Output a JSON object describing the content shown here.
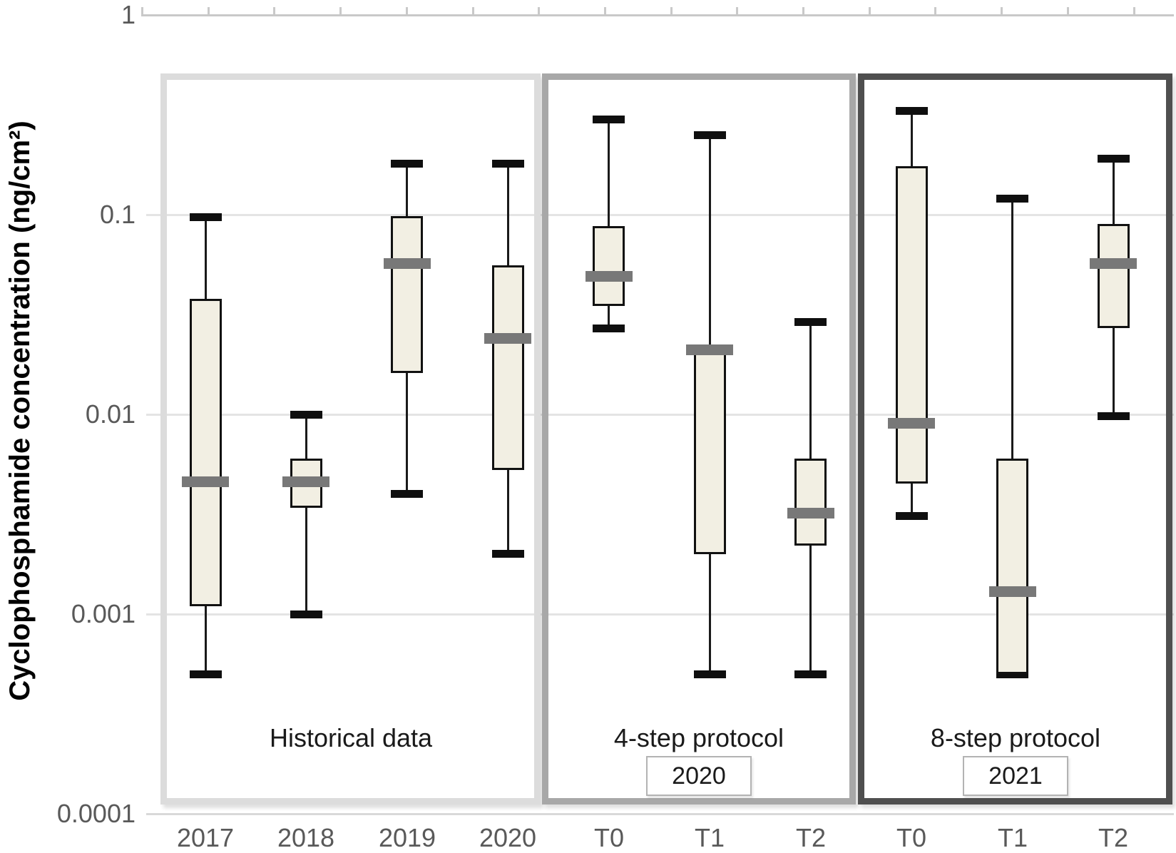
{
  "chart_data": {
    "type": "boxplot",
    "title": "",
    "ylabel": "Cyclophosphamide concentration (ng/cm²)",
    "xlabel": "",
    "y_scale": "log",
    "ylim": [
      0.0001,
      1
    ],
    "y_ticks": [
      {
        "label": "1",
        "value": 1
      },
      {
        "label": "0.1",
        "value": 0.1
      },
      {
        "label": "0.01",
        "value": 0.01
      },
      {
        "label": "0.001",
        "value": 0.001
      },
      {
        "label": "0.0001",
        "value": 0.0001
      }
    ],
    "grid": "horizontal",
    "legend": "none",
    "categories": [
      "2017",
      "2018",
      "2019",
      "2020",
      "T0",
      "T1",
      "T2",
      "T0",
      "T1",
      "T2"
    ],
    "panels": [
      {
        "label": "Historical data",
        "year_badge": null,
        "category_span": [
          0,
          3
        ],
        "border_color": "#dcdcdc"
      },
      {
        "label": "4-step protocol",
        "year_badge": "2020",
        "category_span": [
          4,
          6
        ],
        "border_color": "#a8a8a8"
      },
      {
        "label": "8-step protocol",
        "year_badge": "2021",
        "category_span": [
          7,
          9
        ],
        "border_color": "#4f4f4f"
      }
    ],
    "series": [
      {
        "category": "2017",
        "panel": "Historical data",
        "min": 0.0005,
        "q1": 0.0011,
        "median": 0.0046,
        "q3": 0.038,
        "max": 0.097
      },
      {
        "category": "2018",
        "panel": "Historical data",
        "min": 0.001,
        "q1": 0.0034,
        "median": 0.0046,
        "q3": 0.006,
        "max": 0.01
      },
      {
        "category": "2019",
        "panel": "Historical data",
        "min": 0.004,
        "q1": 0.016,
        "median": 0.057,
        "q3": 0.098,
        "max": 0.18
      },
      {
        "category": "2020",
        "panel": "Historical data",
        "min": 0.002,
        "q1": 0.0053,
        "median": 0.024,
        "q3": 0.056,
        "max": 0.18
      },
      {
        "category": "T0",
        "panel": "4-step protocol",
        "min": 0.027,
        "q1": 0.035,
        "median": 0.049,
        "q3": 0.088,
        "max": 0.3
      },
      {
        "category": "T1",
        "panel": "4-step protocol",
        "min": 0.0005,
        "q1": 0.002,
        "median": 0.021,
        "q3": 0.021,
        "max": 0.25
      },
      {
        "category": "T2",
        "panel": "4-step protocol",
        "min": 0.0005,
        "q1": 0.0022,
        "median": 0.0032,
        "q3": 0.006,
        "max": 0.029
      },
      {
        "category": "T0",
        "panel": "8-step protocol",
        "min": 0.0031,
        "q1": 0.0045,
        "median": 0.009,
        "q3": 0.175,
        "max": 0.33
      },
      {
        "category": "T1",
        "panel": "8-step protocol",
        "min": 0.0005,
        "q1": 0.0005,
        "median": 0.0013,
        "q3": 0.006,
        "max": 0.12
      },
      {
        "category": "T2",
        "panel": "8-step protocol",
        "min": 0.0098,
        "q1": 0.027,
        "median": 0.057,
        "q3": 0.09,
        "max": 0.19
      }
    ],
    "colors": {
      "box_fill": "#f2efe3",
      "box_border": "#111111",
      "median_bar": "#787878",
      "whisker": "#1a1a1a",
      "grid": "#e4e4e4",
      "tick_label": "#595959",
      "panel_border_light": "#dcdcdc",
      "panel_border_medium": "#a8a8a8",
      "panel_border_dark": "#4f4f4f"
    }
  }
}
